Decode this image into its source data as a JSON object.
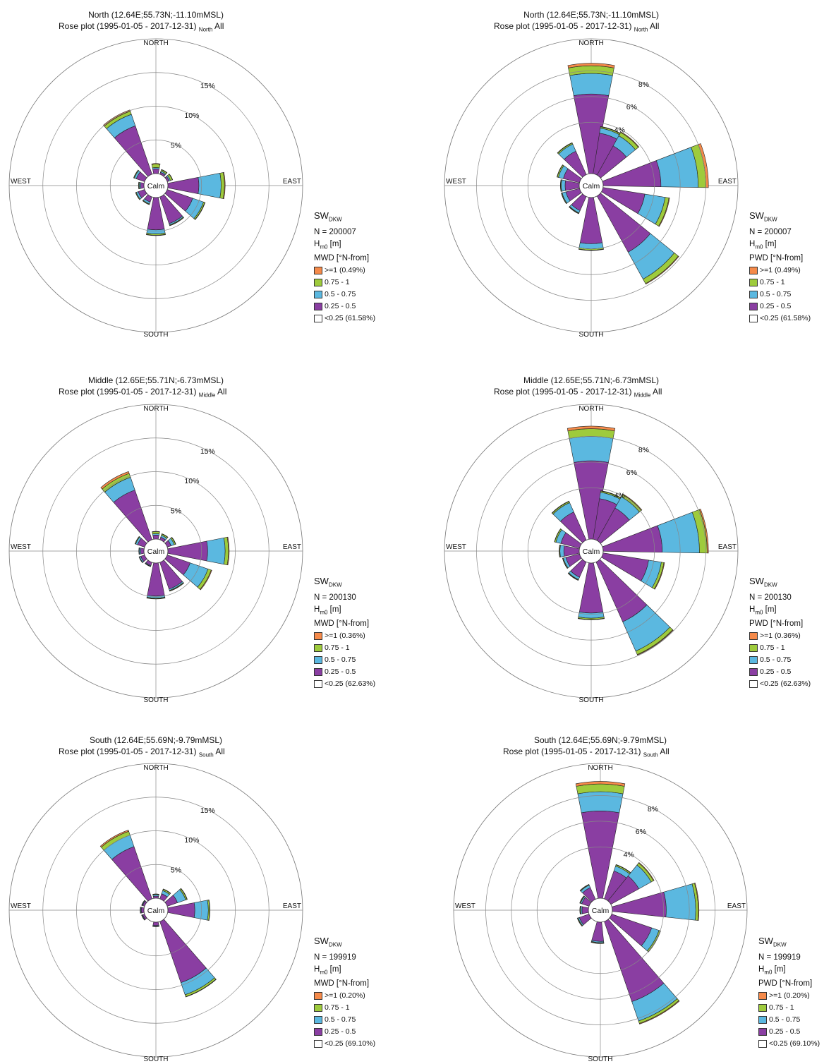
{
  "legend_bins": [
    {
      "label": ">=1",
      "color": "#f58a4a"
    },
    {
      "label": "0.75 - 1",
      "color": "#9ecb3c"
    },
    {
      "label": "0.5 - 0.75",
      "color": "#5bb8e0"
    },
    {
      "label": "0.25 - 0.5",
      "color": "#8a3ea2"
    },
    {
      "label": "<0.25",
      "color": "#ffffff"
    }
  ],
  "chart_data": [
    {
      "type": "rose",
      "title": "North (12.64E;55.73N;-11.10mMSL)",
      "subtitle_main": "Rose plot  (1995-01-05 - 2017-12-31)",
      "subtitle_sub": "North",
      "subtitle_tail": "All",
      "directions": {
        "n": "NORTH",
        "s": "SOUTH",
        "e": "EAST",
        "w": "WEST"
      },
      "calm": "Calm",
      "ring_labels": [
        "5%",
        "10%",
        "15%"
      ],
      "ring_values": [
        5,
        10,
        15
      ],
      "rmax": 20,
      "sw_main": "SW",
      "sw_sub": "DKW",
      "n_label": "N = 200007",
      "h_main": "H",
      "h_sub": "m0",
      "h_unit": "[m]",
      "dir_label": "MWD [°N-from]",
      "bin_extra": [
        "(0.49%)",
        "",
        "",
        "",
        "(61.58%)"
      ],
      "sectors": [
        {
          "dir": 0,
          "values": [
            0.7,
            0.2,
            0.5,
            0.1
          ]
        },
        {
          "dir": 30,
          "values": [
            0.3,
            0.2,
            0.2,
            0.05
          ]
        },
        {
          "dir": 60,
          "values": [
            0.3,
            0.2,
            0.3,
            0.05
          ]
        },
        {
          "dir": 90,
          "values": [
            4.6,
            3.3,
            0.5,
            0.1
          ]
        },
        {
          "dir": 120,
          "values": [
            4.0,
            1.7,
            0.2,
            0.05
          ]
        },
        {
          "dir": 150,
          "values": [
            4.2,
            0.2,
            0.1,
            0.03
          ]
        },
        {
          "dir": 180,
          "values": [
            4.8,
            0.6,
            0.2,
            0.05
          ]
        },
        {
          "dir": 210,
          "values": [
            0.8,
            0.3,
            0.1,
            0.02
          ]
        },
        {
          "dir": 240,
          "values": [
            1.0,
            0.3,
            0.1,
            0.02
          ]
        },
        {
          "dir": 270,
          "values": [
            0.5,
            0.2,
            0.1,
            0.02
          ]
        },
        {
          "dir": 300,
          "values": [
            1.3,
            0.3,
            0.1,
            0.02
          ]
        },
        {
          "dir": 330,
          "values": [
            7.6,
            1.8,
            0.5,
            0.2
          ]
        }
      ],
      "sectors_note": "dir in degrees from north; values are cumulative stack increments (%) for bins 0.25-0.5, 0.5-0.75, 0.75-1, >=1"
    },
    {
      "type": "rose",
      "title": "North (12.64E;55.73N;-11.10mMSL)",
      "subtitle_main": "Rose plot  (1995-01-05 - 2017-12-31)",
      "subtitle_sub": "North",
      "subtitle_tail": "All",
      "directions": {
        "n": "NORTH",
        "s": "SOUTH",
        "e": "EAST",
        "w": "WEST"
      },
      "calm": "Calm",
      "ring_labels": [
        "4%",
        "6%",
        "8%"
      ],
      "ring_values": [
        4,
        6,
        8
      ],
      "rmax": 10.5,
      "sw_main": "SW",
      "sw_sub": "DKW",
      "n_label": "N = 200007",
      "h_main": "H",
      "h_sub": "m0",
      "h_unit": "[m]",
      "dir_label": "PWD [°N-from]",
      "bin_extra": [
        "(0.49%)",
        "",
        "",
        "",
        "(61.58%)"
      ],
      "sectors": [
        {
          "dir": 0,
          "values": [
            6.2,
            1.6,
            0.6,
            0.2
          ]
        },
        {
          "dir": 20,
          "values": [
            3.2,
            0.4,
            0.1,
            0.03
          ]
        },
        {
          "dir": 40,
          "values": [
            2.6,
            0.9,
            0.3,
            0.05
          ]
        },
        {
          "dir": 80,
          "values": [
            4.5,
            2.9,
            0.6,
            0.2
          ]
        },
        {
          "dir": 110,
          "values": [
            3.3,
            1.6,
            0.3,
            0.05
          ]
        },
        {
          "dir": 140,
          "values": [
            5.0,
            2.4,
            0.4,
            0.05
          ]
        },
        {
          "dir": 180,
          "values": [
            3.6,
            0.4,
            0.1,
            0.03
          ]
        },
        {
          "dir": 215,
          "values": [
            1.2,
            0.2,
            0.05,
            0.02
          ]
        },
        {
          "dir": 245,
          "values": [
            1.1,
            0.3,
            0.05,
            0.02
          ]
        },
        {
          "dir": 270,
          "values": [
            1.1,
            0.3,
            0.05,
            0.02
          ]
        },
        {
          "dir": 295,
          "values": [
            1.3,
            0.4,
            0.1,
            0.02
          ]
        },
        {
          "dir": 325,
          "values": [
            2.0,
            0.6,
            0.1,
            0.03
          ]
        }
      ]
    },
    {
      "type": "rose",
      "title": "Middle (12.65E;55.71N;-6.73mMSL)",
      "subtitle_main": "Rose plot  (1995-01-05 - 2017-12-31)",
      "subtitle_sub": "Middle",
      "subtitle_tail": "All",
      "directions": {
        "n": "NORTH",
        "s": "SOUTH",
        "e": "EAST",
        "w": "WEST"
      },
      "calm": "Calm",
      "ring_labels": [
        "5%",
        "10%",
        "15%"
      ],
      "ring_values": [
        5,
        10,
        15
      ],
      "rmax": 20,
      "sw_main": "SW",
      "sw_sub": "DKW",
      "n_label": "N = 200130",
      "h_main": "H",
      "h_sub": "m0",
      "h_unit": "[m]",
      "dir_label": "MWD [°N-from]",
      "bin_extra": [
        "(0.36%)",
        "",
        "",
        "",
        "(62.63%)"
      ],
      "sectors": [
        {
          "dir": 0,
          "values": [
            0.6,
            0.2,
            0.3,
            0.05
          ]
        },
        {
          "dir": 30,
          "values": [
            0.4,
            0.3,
            0.2,
            0.05
          ]
        },
        {
          "dir": 60,
          "values": [
            0.6,
            0.5,
            0.2,
            0.05
          ]
        },
        {
          "dir": 90,
          "values": [
            5.9,
            2.6,
            0.5,
            0.1
          ]
        },
        {
          "dir": 120,
          "values": [
            3.6,
            2.8,
            0.5,
            0.1
          ]
        },
        {
          "dir": 150,
          "values": [
            4.2,
            0.2,
            0.1,
            0.03
          ]
        },
        {
          "dir": 180,
          "values": [
            4.9,
            0.3,
            0.1,
            0.03
          ]
        },
        {
          "dir": 210,
          "values": [
            0.5,
            0.1,
            0.05,
            0.02
          ]
        },
        {
          "dir": 240,
          "values": [
            0.6,
            0.2,
            0.05,
            0.02
          ]
        },
        {
          "dir": 270,
          "values": [
            0.5,
            0.2,
            0.05,
            0.02
          ]
        },
        {
          "dir": 300,
          "values": [
            1.1,
            0.3,
            0.1,
            0.02
          ]
        },
        {
          "dir": 330,
          "values": [
            7.8,
            2.0,
            0.6,
            0.3
          ]
        }
      ]
    },
    {
      "type": "rose",
      "title": "Middle (12.65E;55.71N;-6.73mMSL)",
      "subtitle_main": "Rose plot  (1995-01-05 - 2017-12-31)",
      "subtitle_sub": "Middle",
      "subtitle_tail": "All",
      "directions": {
        "n": "NORTH",
        "s": "SOUTH",
        "e": "EAST",
        "w": "WEST"
      },
      "calm": "Calm",
      "ring_labels": [
        "4%",
        "6%",
        "8%"
      ],
      "ring_values": [
        4,
        6,
        8
      ],
      "rmax": 10.5,
      "sw_main": "SW",
      "sw_sub": "DKW",
      "n_label": "N = 200130",
      "h_main": "H",
      "h_sub": "m0",
      "h_unit": "[m]",
      "dir_label": "PWD [°N-from]",
      "bin_extra": [
        "(0.36%)",
        "",
        "",
        "",
        "(62.63%)"
      ],
      "sectors": [
        {
          "dir": 0,
          "values": [
            6.1,
            1.9,
            0.6,
            0.2
          ]
        },
        {
          "dir": 20,
          "values": [
            3.2,
            0.5,
            0.1,
            0.03
          ]
        },
        {
          "dir": 40,
          "values": [
            2.9,
            1.0,
            0.2,
            0.05
          ]
        },
        {
          "dir": 80,
          "values": [
            4.6,
            2.9,
            0.6,
            0.1
          ]
        },
        {
          "dir": 110,
          "values": [
            3.6,
            1.0,
            0.2,
            0.05
          ]
        },
        {
          "dir": 145,
          "values": [
            5.1,
            2.5,
            0.3,
            0.05
          ]
        },
        {
          "dir": 180,
          "values": [
            3.9,
            0.4,
            0.1,
            0.03
          ]
        },
        {
          "dir": 215,
          "values": [
            1.3,
            0.2,
            0.05,
            0.02
          ]
        },
        {
          "dir": 245,
          "values": [
            1.1,
            0.2,
            0.05,
            0.02
          ]
        },
        {
          "dir": 270,
          "values": [
            1.2,
            0.3,
            0.05,
            0.02
          ]
        },
        {
          "dir": 295,
          "values": [
            1.5,
            0.4,
            0.1,
            0.02
          ]
        },
        {
          "dir": 325,
          "values": [
            2.4,
            0.8,
            0.1,
            0.03
          ]
        }
      ]
    },
    {
      "type": "rose",
      "title": "South (12.64E;55.69N;-9.79mMSL)",
      "subtitle_main": "Rose plot  (1995-01-05 - 2017-12-31)",
      "subtitle_sub": "South",
      "subtitle_tail": "All",
      "directions": {
        "n": "NORTH",
        "s": "SOUTH",
        "e": "EAST",
        "w": "WEST"
      },
      "calm": "Calm",
      "ring_labels": [
        "5%",
        "10%",
        "15%"
      ],
      "ring_values": [
        5,
        10,
        15
      ],
      "rmax": 20,
      "sw_main": "SW",
      "sw_sub": "DKW",
      "n_label": "N = 199919",
      "h_main": "H",
      "h_sub": "m0",
      "h_unit": "[m]",
      "dir_label": "MWD [°N-from]",
      "bin_extra": [
        "(0.20%)",
        "",
        "",
        "",
        "(69.10%)"
      ],
      "sectors": [
        {
          "dir": 0,
          "values": [
            0.3,
            0.2,
            0.1,
            0.03
          ]
        },
        {
          "dir": 30,
          "values": [
            0.8,
            0.5,
            0.2,
            0.05
          ]
        },
        {
          "dir": 60,
          "values": [
            1.6,
            1.3,
            0.2,
            0.05
          ]
        },
        {
          "dir": 90,
          "values": [
            4.0,
            2.0,
            0.2,
            0.05
          ]
        },
        {
          "dir": 150,
          "values": [
            9.6,
            1.9,
            0.3,
            0.05
          ]
        },
        {
          "dir": 180,
          "values": [
            0.5,
            0.1,
            0.05,
            0.02
          ]
        },
        {
          "dir": 240,
          "values": [
            0.3,
            0.1,
            0.05,
            0.02
          ]
        },
        {
          "dir": 270,
          "values": [
            0.4,
            0.1,
            0.05,
            0.02
          ]
        },
        {
          "dir": 300,
          "values": [
            0.3,
            0.1,
            0.05,
            0.02
          ]
        },
        {
          "dir": 330,
          "values": [
            8.2,
            1.8,
            0.6,
            0.2
          ]
        }
      ]
    },
    {
      "type": "rose",
      "title": "South (12.64E;55.69N;-9.79mMSL)",
      "subtitle_main": "Rose plot  (1995-01-05 - 2017-12-31)",
      "subtitle_sub": "South",
      "subtitle_tail": "All",
      "directions": {
        "n": "NORTH",
        "s": "SOUTH",
        "e": "EAST",
        "w": "WEST"
      },
      "calm": "Calm",
      "ring_labels": [
        "4%",
        "6%",
        "8%"
      ],
      "ring_values": [
        4,
        6,
        8
      ],
      "rmax": 10.5,
      "sw_main": "SW",
      "sw_sub": "DKW",
      "n_label": "N = 199919",
      "h_main": "H",
      "h_sub": "m0",
      "h_unit": "[m]",
      "dir_label": "PWD [°N-from]",
      "bin_extra": [
        "(0.20%)",
        "",
        "",
        "",
        "(69.10%)"
      ],
      "sectors": [
        {
          "dir": 0,
          "values": [
            6.8,
            1.5,
            0.6,
            0.2
          ]
        },
        {
          "dir": 30,
          "values": [
            2.3,
            0.4,
            0.1,
            0.03
          ]
        },
        {
          "dir": 50,
          "values": [
            2.5,
            1.1,
            0.2,
            0.05
          ]
        },
        {
          "dir": 85,
          "values": [
            4.2,
            2.3,
            0.2,
            0.05
          ]
        },
        {
          "dir": 120,
          "values": [
            3.3,
            0.6,
            0.1,
            0.03
          ]
        },
        {
          "dir": 150,
          "values": [
            6.6,
            1.6,
            0.2,
            0.05
          ]
        },
        {
          "dir": 185,
          "values": [
            1.5,
            0.1,
            0.05,
            0.02
          ]
        },
        {
          "dir": 240,
          "values": [
            0.8,
            0.1,
            0.05,
            0.02
          ]
        },
        {
          "dir": 270,
          "values": [
            0.5,
            0.1,
            0.05,
            0.02
          ]
        },
        {
          "dir": 300,
          "values": [
            0.6,
            0.1,
            0.05,
            0.02
          ]
        },
        {
          "dir": 325,
          "values": [
            1.0,
            0.2,
            0.05,
            0.02
          ]
        }
      ]
    }
  ]
}
